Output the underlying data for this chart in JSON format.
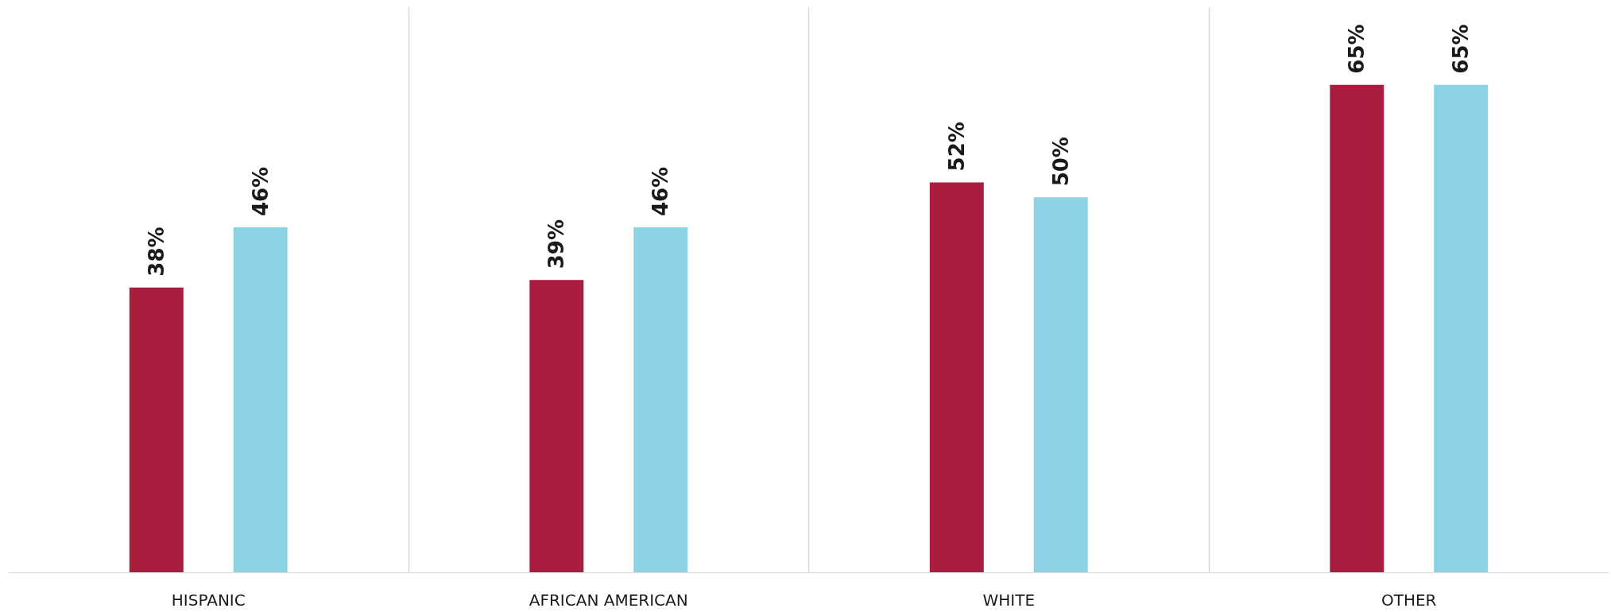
{
  "chart_data": {
    "type": "bar",
    "categories": [
      "HISPANIC",
      "AFRICAN AMERICAN",
      "WHITE",
      "OTHER"
    ],
    "series": [
      {
        "color": "#a91e3f",
        "values": [
          38,
          39,
          52,
          65
        ],
        "value_labels": [
          "38%",
          "39%",
          "52%",
          "65%"
        ]
      },
      {
        "color": "#8bd2e5",
        "values": [
          46,
          46,
          50,
          65
        ],
        "value_labels": [
          "46%",
          "46%",
          "50%",
          "65%"
        ]
      }
    ],
    "grid": "x"
  }
}
